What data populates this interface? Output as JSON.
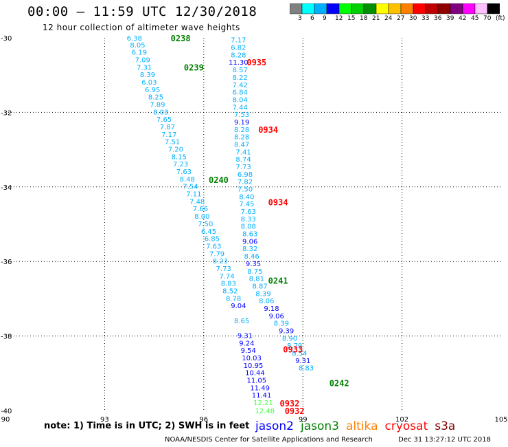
{
  "header": {
    "title": "00:00 – 11:59 UTC 12/30/2018",
    "subtitle": "12 hour collection of altimeter wave heights"
  },
  "colorbar": {
    "colors": [
      "#808080",
      "#00ffff",
      "#00b0ff",
      "#0000ff",
      "#00ff00",
      "#00d000",
      "#009000",
      "#ffff00",
      "#ffc000",
      "#ff8000",
      "#ff0000",
      "#c00000",
      "#900000",
      "#800080",
      "#ff00ff",
      "#ffc0ff",
      "#000000"
    ],
    "labels": [
      "3",
      "6",
      "9",
      "12",
      "15",
      "18",
      "21",
      "24",
      "27",
      "30",
      "33",
      "36",
      "39",
      "42",
      "45",
      "70",
      "(ft)"
    ]
  },
  "axes": {
    "x_ticks": [
      "90",
      "93",
      "96",
      "99",
      "102",
      "105"
    ],
    "y_ticks": [
      "-30",
      "-32",
      "-34",
      "-36",
      "-38",
      "-40"
    ]
  },
  "chart_data": {
    "type": "scatter",
    "xlim": [
      90,
      105
    ],
    "ylim": [
      -40,
      -30
    ],
    "grid": true,
    "points": [
      {
        "x": 93.9,
        "y": -30.0,
        "v": "6.38",
        "c": "#00b0ff"
      },
      {
        "x": 94.0,
        "y": -30.18,
        "v": "8.05",
        "c": "#00b0ff"
      },
      {
        "x": 94.05,
        "y": -30.38,
        "v": "6.19",
        "c": "#00b0ff"
      },
      {
        "x": 94.15,
        "y": -30.58,
        "v": "7.09",
        "c": "#00b0ff"
      },
      {
        "x": 94.2,
        "y": -30.78,
        "v": "7.31",
        "c": "#00b0ff"
      },
      {
        "x": 94.3,
        "y": -30.98,
        "v": "8.39",
        "c": "#00b0ff"
      },
      {
        "x": 94.35,
        "y": -31.18,
        "v": "6.03",
        "c": "#00b0ff"
      },
      {
        "x": 94.45,
        "y": -31.38,
        "v": "6.95",
        "c": "#00b0ff"
      },
      {
        "x": 94.55,
        "y": -31.58,
        "v": "8.25",
        "c": "#00b0ff"
      },
      {
        "x": 94.6,
        "y": -31.78,
        "v": "7.89",
        "c": "#00b0ff"
      },
      {
        "x": 94.7,
        "y": -31.98,
        "v": "8.03",
        "c": "#00b0ff"
      },
      {
        "x": 94.8,
        "y": -32.18,
        "v": "7.65",
        "c": "#00b0ff"
      },
      {
        "x": 94.9,
        "y": -32.38,
        "v": "7.87",
        "c": "#00b0ff"
      },
      {
        "x": 94.95,
        "y": -32.58,
        "v": "7.17",
        "c": "#00b0ff"
      },
      {
        "x": 95.05,
        "y": -32.78,
        "v": "7.51",
        "c": "#00b0ff"
      },
      {
        "x": 95.15,
        "y": -32.98,
        "v": "7.20",
        "c": "#00b0ff"
      },
      {
        "x": 95.25,
        "y": -33.18,
        "v": "8.15",
        "c": "#00b0ff"
      },
      {
        "x": 95.3,
        "y": -33.38,
        "v": "7.23",
        "c": "#00b0ff"
      },
      {
        "x": 95.4,
        "y": -33.58,
        "v": "7.63",
        "c": "#00b0ff"
      },
      {
        "x": 95.5,
        "y": -33.78,
        "v": "8.48",
        "c": "#00b0ff"
      },
      {
        "x": 95.6,
        "y": -33.98,
        "v": "7.54",
        "c": "#00b0ff"
      },
      {
        "x": 95.7,
        "y": -34.18,
        "v": "7.11",
        "c": "#00b0ff"
      },
      {
        "x": 95.8,
        "y": -34.38,
        "v": "7.48",
        "c": "#00b0ff"
      },
      {
        "x": 95.9,
        "y": -34.58,
        "v": "7.66",
        "c": "#00b0ff"
      },
      {
        "x": 95.95,
        "y": -34.78,
        "v": "8.00",
        "c": "#00b0ff"
      },
      {
        "x": 96.05,
        "y": -34.98,
        "v": "7.50",
        "c": "#00b0ff"
      },
      {
        "x": 96.15,
        "y": -35.18,
        "v": "6.45",
        "c": "#00b0ff"
      },
      {
        "x": 96.25,
        "y": -35.38,
        "v": "6.85",
        "c": "#00b0ff"
      },
      {
        "x": 96.3,
        "y": -35.58,
        "v": "7.63",
        "c": "#00b0ff"
      },
      {
        "x": 96.4,
        "y": -35.78,
        "v": "7.79",
        "c": "#00b0ff"
      },
      {
        "x": 96.5,
        "y": -35.98,
        "v": "8.23",
        "c": "#00b0ff"
      },
      {
        "x": 96.6,
        "y": -36.18,
        "v": "7.73",
        "c": "#00b0ff"
      },
      {
        "x": 96.7,
        "y": -36.38,
        "v": "7.74",
        "c": "#00b0ff"
      },
      {
        "x": 96.75,
        "y": -36.58,
        "v": "8.83",
        "c": "#00b0ff"
      },
      {
        "x": 96.8,
        "y": -36.78,
        "v": "8.52",
        "c": "#00b0ff"
      },
      {
        "x": 96.9,
        "y": -36.98,
        "v": "8.78",
        "c": "#00b0ff"
      },
      {
        "x": 97.05,
        "y": -37.18,
        "v": "9.04",
        "c": "#0000ff"
      },
      {
        "x": 97.15,
        "y": -37.58,
        "v": "8.65",
        "c": "#00b0ff"
      },
      {
        "x": 97.25,
        "y": -37.98,
        "v": "9.31",
        "c": "#0000ff"
      },
      {
        "x": 97.3,
        "y": -38.18,
        "v": "9.24",
        "c": "#0000ff"
      },
      {
        "x": 97.35,
        "y": -38.38,
        "v": "9.54",
        "c": "#0000ff"
      },
      {
        "x": 97.45,
        "y": -38.58,
        "v": "10.03",
        "c": "#0000ff"
      },
      {
        "x": 97.5,
        "y": -38.78,
        "v": "10.95",
        "c": "#0000ff"
      },
      {
        "x": 97.55,
        "y": -38.98,
        "v": "10.44",
        "c": "#0000ff"
      },
      {
        "x": 97.6,
        "y": -39.18,
        "v": "11.05",
        "c": "#0000ff"
      },
      {
        "x": 97.7,
        "y": -39.38,
        "v": "11.49",
        "c": "#0000ff"
      },
      {
        "x": 97.75,
        "y": -39.58,
        "v": "11.41",
        "c": "#0000ff"
      },
      {
        "x": 97.8,
        "y": -39.78,
        "v": "12.21",
        "c": "#40ff40"
      },
      {
        "x": 97.85,
        "y": -40.0,
        "v": "12.48",
        "c": "#40ff40"
      },
      {
        "x": 97.05,
        "y": -30.05,
        "v": "7.17",
        "c": "#00b0ff"
      },
      {
        "x": 97.05,
        "y": -30.25,
        "v": "6.82",
        "c": "#00b0ff"
      },
      {
        "x": 97.05,
        "y": -30.45,
        "v": "8.28",
        "c": "#00b0ff"
      },
      {
        "x": 97.05,
        "y": -30.65,
        "v": "11.30",
        "c": "#0000ff"
      },
      {
        "x": 97.1,
        "y": -30.85,
        "v": "8.57",
        "c": "#00b0ff"
      },
      {
        "x": 97.1,
        "y": -31.05,
        "v": "8.22",
        "c": "#00b0ff"
      },
      {
        "x": 97.1,
        "y": -31.25,
        "v": "7.42",
        "c": "#00b0ff"
      },
      {
        "x": 97.1,
        "y": -31.45,
        "v": "6.84",
        "c": "#00b0ff"
      },
      {
        "x": 97.1,
        "y": -31.65,
        "v": "8.04",
        "c": "#00b0ff"
      },
      {
        "x": 97.1,
        "y": -31.85,
        "v": "7.44",
        "c": "#00b0ff"
      },
      {
        "x": 97.15,
        "y": -32.05,
        "v": "7.53",
        "c": "#00b0ff"
      },
      {
        "x": 97.15,
        "y": -32.25,
        "v": "9.19",
        "c": "#0000ff"
      },
      {
        "x": 97.15,
        "y": -32.45,
        "v": "8.28",
        "c": "#00b0ff"
      },
      {
        "x": 97.15,
        "y": -32.65,
        "v": "8.28",
        "c": "#00b0ff"
      },
      {
        "x": 97.15,
        "y": -32.85,
        "v": "8.47",
        "c": "#00b0ff"
      },
      {
        "x": 97.2,
        "y": -33.05,
        "v": "7.41",
        "c": "#00b0ff"
      },
      {
        "x": 97.2,
        "y": -33.25,
        "v": "8.74",
        "c": "#00b0ff"
      },
      {
        "x": 97.2,
        "y": -33.45,
        "v": "7.73",
        "c": "#00b0ff"
      },
      {
        "x": 97.25,
        "y": -33.65,
        "v": "6.98",
        "c": "#00b0ff"
      },
      {
        "x": 97.25,
        "y": -33.85,
        "v": "7.82",
        "c": "#00b0ff"
      },
      {
        "x": 97.25,
        "y": -34.05,
        "v": "7.50",
        "c": "#00b0ff"
      },
      {
        "x": 97.3,
        "y": -34.25,
        "v": "8.40",
        "c": "#00b0ff"
      },
      {
        "x": 97.3,
        "y": -34.45,
        "v": "7.45",
        "c": "#00b0ff"
      },
      {
        "x": 97.35,
        "y": -34.65,
        "v": "7.63",
        "c": "#00b0ff"
      },
      {
        "x": 97.35,
        "y": -34.85,
        "v": "8.33",
        "c": "#00b0ff"
      },
      {
        "x": 97.35,
        "y": -35.05,
        "v": "8.08",
        "c": "#00b0ff"
      },
      {
        "x": 97.4,
        "y": -35.25,
        "v": "8.63",
        "c": "#00b0ff"
      },
      {
        "x": 97.4,
        "y": -35.45,
        "v": "9.06",
        "c": "#0000ff"
      },
      {
        "x": 97.4,
        "y": -35.65,
        "v": "8.32",
        "c": "#00b0ff"
      },
      {
        "x": 97.45,
        "y": -35.85,
        "v": "8.46",
        "c": "#00b0ff"
      },
      {
        "x": 97.5,
        "y": -36.05,
        "v": "9.35",
        "c": "#0000ff"
      },
      {
        "x": 97.55,
        "y": -36.25,
        "v": "8.75",
        "c": "#00b0ff"
      },
      {
        "x": 97.6,
        "y": -36.45,
        "v": "8.81",
        "c": "#00b0ff"
      },
      {
        "x": 97.7,
        "y": -36.65,
        "v": "8.87",
        "c": "#00b0ff"
      },
      {
        "x": 97.8,
        "y": -36.85,
        "v": "8.39",
        "c": "#00b0ff"
      },
      {
        "x": 97.9,
        "y": -37.05,
        "v": "8.06",
        "c": "#00b0ff"
      },
      {
        "x": 98.05,
        "y": -37.25,
        "v": "9.18",
        "c": "#0000ff"
      },
      {
        "x": 98.2,
        "y": -37.45,
        "v": "9.06",
        "c": "#0000ff"
      },
      {
        "x": 98.35,
        "y": -37.65,
        "v": "8.39",
        "c": "#00b0ff"
      },
      {
        "x": 98.5,
        "y": -37.85,
        "v": "9.39",
        "c": "#0000ff"
      },
      {
        "x": 98.6,
        "y": -38.05,
        "v": "8.90",
        "c": "#00b0ff"
      },
      {
        "x": 98.75,
        "y": -38.25,
        "v": "8.79",
        "c": "#00b0ff"
      },
      {
        "x": 98.9,
        "y": -38.45,
        "v": "8.54",
        "c": "#00b0ff"
      },
      {
        "x": 99.0,
        "y": -38.65,
        "v": "9.31",
        "c": "#0000ff"
      },
      {
        "x": 99.1,
        "y": -38.85,
        "v": "8.83",
        "c": "#00b0ff"
      }
    ],
    "time_labels": [
      {
        "x": 95.3,
        "y": -30.0,
        "t": "0238",
        "c": "#008000"
      },
      {
        "x": 95.7,
        "y": -30.78,
        "t": "0239",
        "c": "#008000"
      },
      {
        "x": 96.45,
        "y": -33.8,
        "t": "0240",
        "c": "#008000"
      },
      {
        "x": 98.25,
        "y": -36.5,
        "t": "0241",
        "c": "#008000"
      },
      {
        "x": 100.1,
        "y": -39.25,
        "t": "0242",
        "c": "#008000"
      },
      {
        "x": 97.6,
        "y": -30.65,
        "t": "0935",
        "c": "#ff0000"
      },
      {
        "x": 97.95,
        "y": -32.45,
        "t": "0934",
        "c": "#ff0000"
      },
      {
        "x": 98.25,
        "y": -34.4,
        "t": "0934",
        "c": "#ff0000"
      },
      {
        "x": 98.7,
        "y": -38.35,
        "t": "0933",
        "c": "#ff0000"
      },
      {
        "x": 98.6,
        "y": -39.8,
        "t": "0932",
        "c": "#ff0000"
      },
      {
        "x": 98.75,
        "y": -40.0,
        "t": "0932",
        "c": "#ff0000"
      }
    ]
  },
  "legend": [
    {
      "label": "jason2",
      "color": "#0000ff"
    },
    {
      "label": "jason3",
      "color": "#008000"
    },
    {
      "label": "altika",
      "color": "#ff8000"
    },
    {
      "label": "cryosat",
      "color": "#ff0000"
    },
    {
      "label": "s3a",
      "color": "#800000"
    }
  ],
  "footer": {
    "note": "note:  1) Time is in UTC;  2) SWH is in feet",
    "credit": "NOAA/NESDIS Center for Satellite Applications and Research",
    "timestamp": "Dec 31 13:27:12 UTC 2018"
  }
}
